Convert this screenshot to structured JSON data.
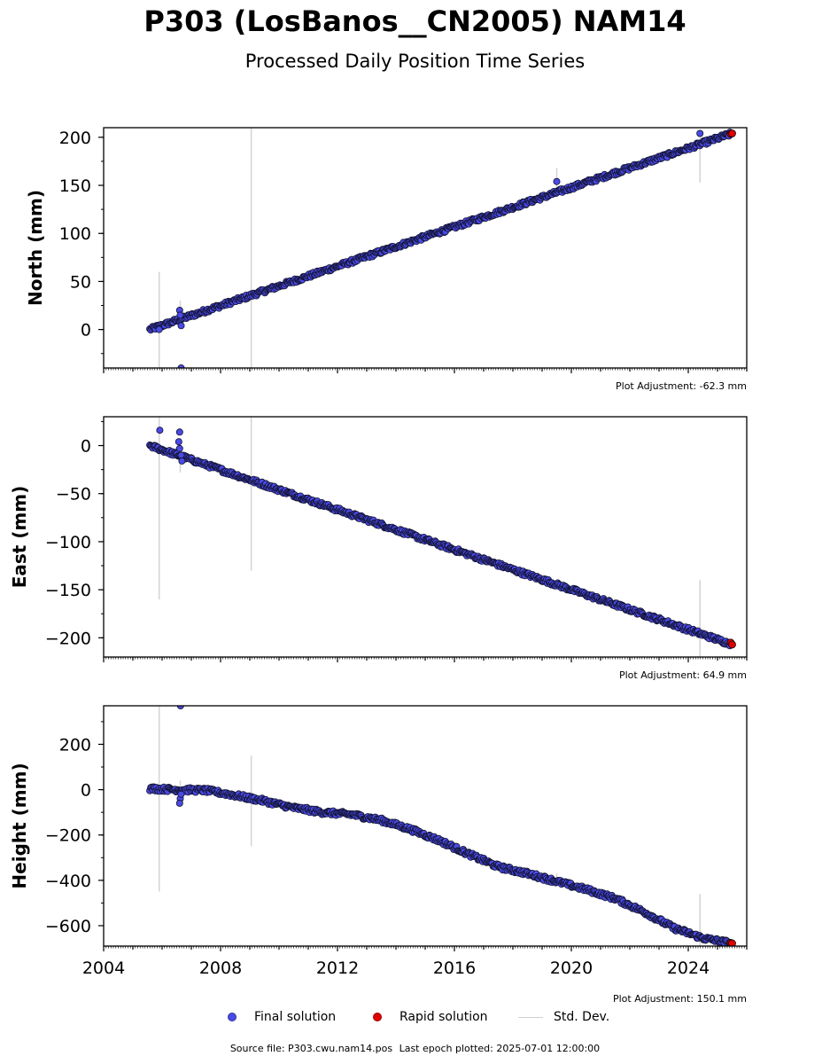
{
  "title": "P303 (LosBanos__CN2005) NAM14",
  "subtitle": "Processed Daily Position Time Series",
  "legend": {
    "final_label": "Final solution",
    "rapid_label": "Rapid solution",
    "std_label": "Std. Dev."
  },
  "colors": {
    "final": "#4a4ae6",
    "final_edge": "#12122e",
    "rapid": "#e00000",
    "std": "#d3d3d3",
    "axis": "#000000"
  },
  "footer": {
    "source": "Source file: P303.cwu.nam14.pos",
    "last_epoch": "Last epoch plotted: 2025-07-01 12:00:00"
  },
  "chart_data": [
    {
      "type": "scatter",
      "id": "north",
      "ylabel": "North (mm)",
      "xlim": [
        2004,
        2026
      ],
      "ylim": [
        -40,
        210
      ],
      "yticks": [
        0,
        50,
        100,
        150,
        200
      ],
      "ytick_labels": [
        "0",
        "50",
        "100",
        "150",
        "200"
      ],
      "xticks": [
        2004,
        2008,
        2012,
        2016,
        2020,
        2024
      ],
      "show_xtick_labels": false,
      "adjustment": "Plot Adjustment: -62.3 mm",
      "trend_start": [
        2005.58,
        0
      ],
      "trend_end": [
        2025.5,
        204
      ],
      "outliers": [
        [
          2006.6,
          20
        ],
        [
          2006.65,
          4
        ],
        [
          2006.62,
          15
        ],
        [
          2006.65,
          -40
        ],
        [
          2019.5,
          154
        ],
        [
          2024.4,
          204
        ],
        [
          2005.9,
          0
        ]
      ],
      "std_bars": [
        [
          2005.9,
          0,
          60
        ],
        [
          2009.05,
          33,
          210
        ],
        [
          2006.62,
          20,
          10
        ],
        [
          2019.5,
          154,
          14
        ],
        [
          2024.4,
          178,
          25
        ]
      ],
      "rapid_points": [
        [
          2025.45,
          203.5
        ],
        [
          2025.5,
          204
        ]
      ]
    },
    {
      "type": "scatter",
      "id": "east",
      "ylabel": "East (mm)",
      "xlim": [
        2004,
        2026
      ],
      "ylim": [
        -220,
        30
      ],
      "yticks": [
        -200,
        -150,
        -100,
        -50,
        0
      ],
      "ytick_labels": [
        "−200",
        "−150",
        "−100",
        "−50",
        "0"
      ],
      "xticks": [
        2004,
        2008,
        2012,
        2016,
        2020,
        2024
      ],
      "show_xtick_labels": false,
      "adjustment": "Plot Adjustment: 64.9 mm",
      "trend_start": [
        2005.58,
        0
      ],
      "trend_end": [
        2025.5,
        -207
      ],
      "outliers": [
        [
          2005.92,
          16
        ],
        [
          2006.6,
          14
        ],
        [
          2006.57,
          4
        ],
        [
          2006.6,
          -3
        ],
        [
          2006.65,
          -10
        ],
        [
          2006.68,
          -16
        ]
      ],
      "std_bars": [
        [
          2005.9,
          0,
          160
        ],
        [
          2009.05,
          -35,
          95
        ],
        [
          2006.62,
          -10,
          18
        ],
        [
          2024.4,
          -190,
          50
        ]
      ],
      "rapid_points": [
        [
          2025.45,
          -205
        ],
        [
          2025.5,
          -207
        ]
      ]
    },
    {
      "type": "scatter",
      "id": "height",
      "ylabel": "Height (mm)",
      "xlim": [
        2004,
        2026
      ],
      "ylim": [
        -690,
        370
      ],
      "yticks": [
        -600,
        -400,
        -200,
        0,
        200
      ],
      "ytick_labels": [
        "−600",
        "−400",
        "−200",
        "0",
        "200"
      ],
      "xticks": [
        2004,
        2008,
        2012,
        2016,
        2020,
        2024
      ],
      "xtick_labels": [
        "2004",
        "2008",
        "2012",
        "2016",
        "2020",
        "2024"
      ],
      "show_xtick_labels": true,
      "adjustment": "Plot Adjustment: 150.1 mm",
      "profile": [
        [
          2005.58,
          5
        ],
        [
          2006.5,
          0
        ],
        [
          2007.5,
          -3
        ],
        [
          2008.5,
          -25
        ],
        [
          2009.5,
          -50
        ],
        [
          2010.5,
          -80
        ],
        [
          2011.5,
          -100
        ],
        [
          2012.5,
          -110
        ],
        [
          2013.5,
          -135
        ],
        [
          2014.5,
          -175
        ],
        [
          2015.5,
          -225
        ],
        [
          2016.5,
          -285
        ],
        [
          2017.5,
          -340
        ],
        [
          2018.5,
          -370
        ],
        [
          2019.5,
          -405
        ],
        [
          2020.5,
          -440
        ],
        [
          2021.5,
          -480
        ],
        [
          2022.5,
          -540
        ],
        [
          2023.5,
          -610
        ],
        [
          2024.5,
          -655
        ],
        [
          2025.5,
          -678
        ]
      ],
      "outliers": [
        [
          2006.63,
          370
        ],
        [
          2006.62,
          -40
        ],
        [
          2006.6,
          -60
        ],
        [
          2006.65,
          -20
        ]
      ],
      "std_bars": [
        [
          2005.9,
          0,
          450
        ],
        [
          2009.05,
          -50,
          200
        ],
        [
          2006.62,
          0,
          40
        ],
        [
          2024.4,
          -650,
          190
        ],
        [
          2019.5,
          -390,
          20
        ]
      ],
      "rapid_points": [
        [
          2025.45,
          -676
        ],
        [
          2025.5,
          -678
        ]
      ]
    }
  ]
}
